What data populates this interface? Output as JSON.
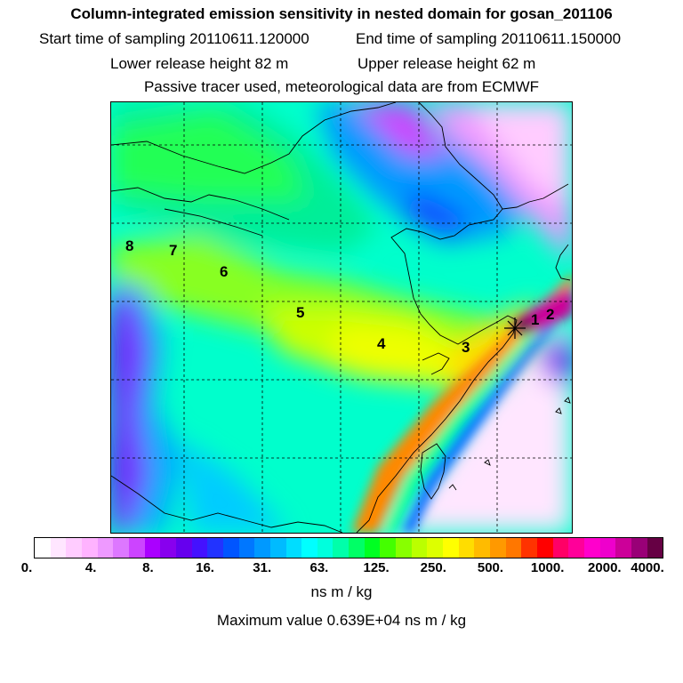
{
  "header": {
    "title": "Column-integrated emission sensitivity in nested domain for gosan_201106",
    "start_label": "Start time of sampling 20110611.120000",
    "end_label": "End time of sampling 20110611.150000",
    "lower_label": "Lower release height   82 m",
    "upper_label": "Upper release height   62 m",
    "note": "Passive tracer used, meteorological data are from ECMWF"
  },
  "map": {
    "trajectory_labels": [
      "1",
      "2",
      "3",
      "4",
      "5",
      "6",
      "7",
      "8"
    ]
  },
  "colorbar": {
    "colors": [
      "#ffffff",
      "#ffe6ff",
      "#ffccff",
      "#ffb3ff",
      "#ee99ff",
      "#dd77ff",
      "#cc44ff",
      "#aa00ff",
      "#8800ee",
      "#6600ee",
      "#4411ff",
      "#2233ff",
      "#0055ff",
      "#0077ff",
      "#0099ff",
      "#00bbff",
      "#00ddff",
      "#00ffff",
      "#00ffdd",
      "#00ffaa",
      "#00ff66",
      "#00ff22",
      "#44ff00",
      "#88ff00",
      "#bbff00",
      "#ddff00",
      "#ffff00",
      "#ffdd00",
      "#ffbb00",
      "#ff9900",
      "#ff7700",
      "#ff3300",
      "#ff0000",
      "#ff0066",
      "#ff0099",
      "#ff00cc",
      "#ee00cc",
      "#cc0099",
      "#990077",
      "#660044"
    ],
    "tick_labels": [
      "0.",
      "4.",
      "8.",
      "16.",
      "31.",
      "63.",
      "125.",
      "250.",
      "500.",
      "1000.",
      "2000.",
      "4000."
    ],
    "unit": "ns m / kg",
    "max_value": "Maximum value  0.639E+04 ns m / kg"
  }
}
